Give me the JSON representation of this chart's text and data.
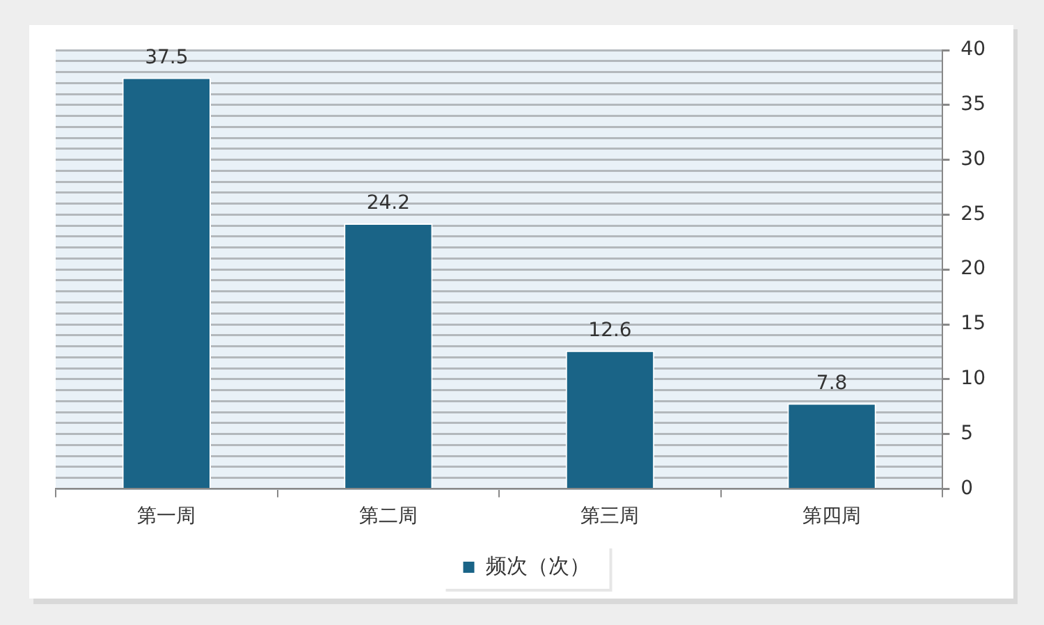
{
  "chart_data": {
    "type": "bar",
    "categories": [
      "第一周",
      "第二周",
      "第三周",
      "第四周"
    ],
    "series": [
      {
        "name": "频次（次）",
        "color": "#1a6487",
        "values": [
          37.5,
          24.2,
          12.6,
          7.8
        ]
      }
    ],
    "ylim": [
      0,
      40
    ],
    "yticks": [
      0,
      {
        "value": 1,
        "label": null
      },
      {
        "value": 2,
        "label": null
      },
      {
        "value": 3,
        "label": null
      },
      {
        "value": 4,
        "label": null
      },
      5,
      {
        "value": 6,
        "label": null
      },
      {
        "value": 7,
        "label": null
      },
      {
        "value": 8,
        "label": null
      },
      {
        "value": 9,
        "label": null
      },
      10,
      {
        "value": 11,
        "label": null
      },
      {
        "value": 12,
        "label": null
      },
      {
        "value": 13,
        "label": null
      },
      {
        "value": 14,
        "label": null
      },
      15,
      {
        "value": 16,
        "label": null
      },
      {
        "value": 17,
        "label": null
      },
      {
        "value": 18,
        "label": null
      },
      {
        "value": 19,
        "label": null
      },
      20,
      {
        "value": 21,
        "label": null
      },
      {
        "value": 22,
        "label": null
      },
      {
        "value": 23,
        "label": null
      },
      {
        "value": 24,
        "label": null
      },
      25,
      {
        "value": 26,
        "label": null
      },
      {
        "value": 27,
        "label": null
      },
      {
        "value": 28,
        "label": null
      },
      {
        "value": 29,
        "label": null
      },
      30,
      {
        "value": 31,
        "label": null
      },
      {
        "value": 32,
        "label": null
      },
      {
        "value": 33,
        "label": null
      },
      {
        "value": 34,
        "label": null
      },
      35,
      {
        "value": 36,
        "label": null
      },
      {
        "value": 37,
        "label": null
      },
      {
        "value": 38,
        "label": null
      },
      {
        "value": 39,
        "label": null
      },
      40
    ],
    "grid": "y",
    "legend": "bottom",
    "data_labels": true
  }
}
